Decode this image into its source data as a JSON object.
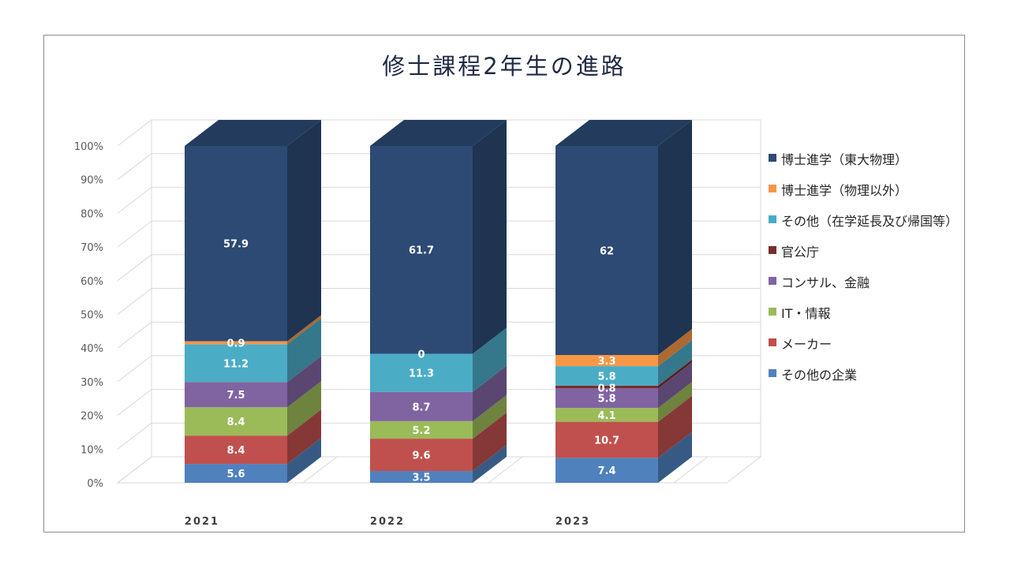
{
  "chart_data": {
    "type": "bar",
    "stacked": true,
    "style": "3d-stacked-percent",
    "title": "修士課程2年生の進路",
    "categories": [
      "2021",
      "2022",
      "2023"
    ],
    "y_ticks": [
      "0%",
      "10%",
      "20%",
      "30%",
      "40%",
      "50%",
      "60%",
      "70%",
      "80%",
      "90%",
      "100%"
    ],
    "ylim": [
      0,
      100
    ],
    "grid": true,
    "legend_position": "right",
    "series": [
      {
        "name": "その他の企業",
        "color": "#4f81bd",
        "values": [
          5.6,
          3.5,
          7.4
        ]
      },
      {
        "name": "メーカー",
        "color": "#c0504d",
        "values": [
          8.4,
          9.6,
          10.7
        ]
      },
      {
        "name": "IT・情報",
        "color": "#9bbb59",
        "values": [
          8.4,
          5.2,
          4.1
        ]
      },
      {
        "name": "コンサル、金融",
        "color": "#8064a2",
        "values": [
          7.5,
          8.7,
          5.8
        ]
      },
      {
        "name": "官公庁",
        "color": "#7b2c2c",
        "values": [
          null,
          null,
          0.8
        ]
      },
      {
        "name": "その他（在学延長及び帰国等）",
        "color": "#4bacc6",
        "values": [
          11.2,
          11.3,
          5.8
        ]
      },
      {
        "name": "博士進学（物理以外）",
        "color": "#f79646",
        "values": [
          0.9,
          0,
          3.3
        ]
      },
      {
        "name": "博士進学（東大物理）",
        "color": "#2c4a74",
        "values": [
          57.9,
          61.7,
          62
        ]
      }
    ]
  }
}
